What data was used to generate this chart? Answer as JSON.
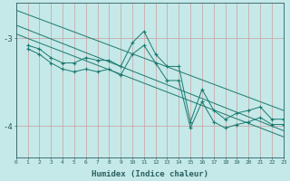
{
  "xlabel": "Humidex (Indice chaleur)",
  "bg_color": "#c5e8e8",
  "line_color": "#1a7a6e",
  "grid_h_color": "#c8a0a0",
  "grid_v_color": "#c8a0a0",
  "xlim": [
    0,
    23
  ],
  "ylim": [
    -4.35,
    -2.6
  ],
  "yticks": [
    -4,
    -3
  ],
  "xticks": [
    0,
    1,
    2,
    3,
    4,
    5,
    6,
    7,
    8,
    9,
    10,
    11,
    12,
    13,
    14,
    15,
    16,
    17,
    18,
    19,
    20,
    21,
    22,
    23
  ],
  "series1_x": [
    1,
    2,
    3,
    4,
    5,
    6,
    7,
    8,
    9,
    10,
    11,
    12,
    13,
    14,
    15,
    16,
    17,
    18,
    19,
    20,
    21,
    22,
    23
  ],
  "series1_y": [
    -3.08,
    -3.12,
    -3.22,
    -3.28,
    -3.28,
    -3.22,
    -3.25,
    -3.25,
    -3.32,
    -3.05,
    -2.92,
    -3.18,
    -3.32,
    -3.32,
    -3.95,
    -3.58,
    -3.82,
    -3.92,
    -3.85,
    -3.82,
    -3.78,
    -3.92,
    -3.92
  ],
  "series2_x": [
    1,
    2,
    3,
    4,
    5,
    6,
    7,
    8,
    9,
    10,
    11,
    12,
    13,
    14,
    15,
    16,
    17,
    18,
    19,
    20,
    21,
    22,
    23
  ],
  "series2_y": [
    -3.12,
    -3.18,
    -3.28,
    -3.35,
    -3.38,
    -3.35,
    -3.38,
    -3.35,
    -3.42,
    -3.18,
    -3.08,
    -3.28,
    -3.48,
    -3.48,
    -4.02,
    -3.72,
    -3.95,
    -4.02,
    -3.98,
    -3.95,
    -3.9,
    -3.98,
    -3.98
  ],
  "trend1_x": [
    0,
    23
  ],
  "trend1_y": [
    -2.68,
    -3.82
  ],
  "trend2_x": [
    0,
    23
  ],
  "trend2_y": [
    -2.85,
    -4.05
  ],
  "trend3_x": [
    0,
    23
  ],
  "trend3_y": [
    -2.95,
    -4.12
  ]
}
